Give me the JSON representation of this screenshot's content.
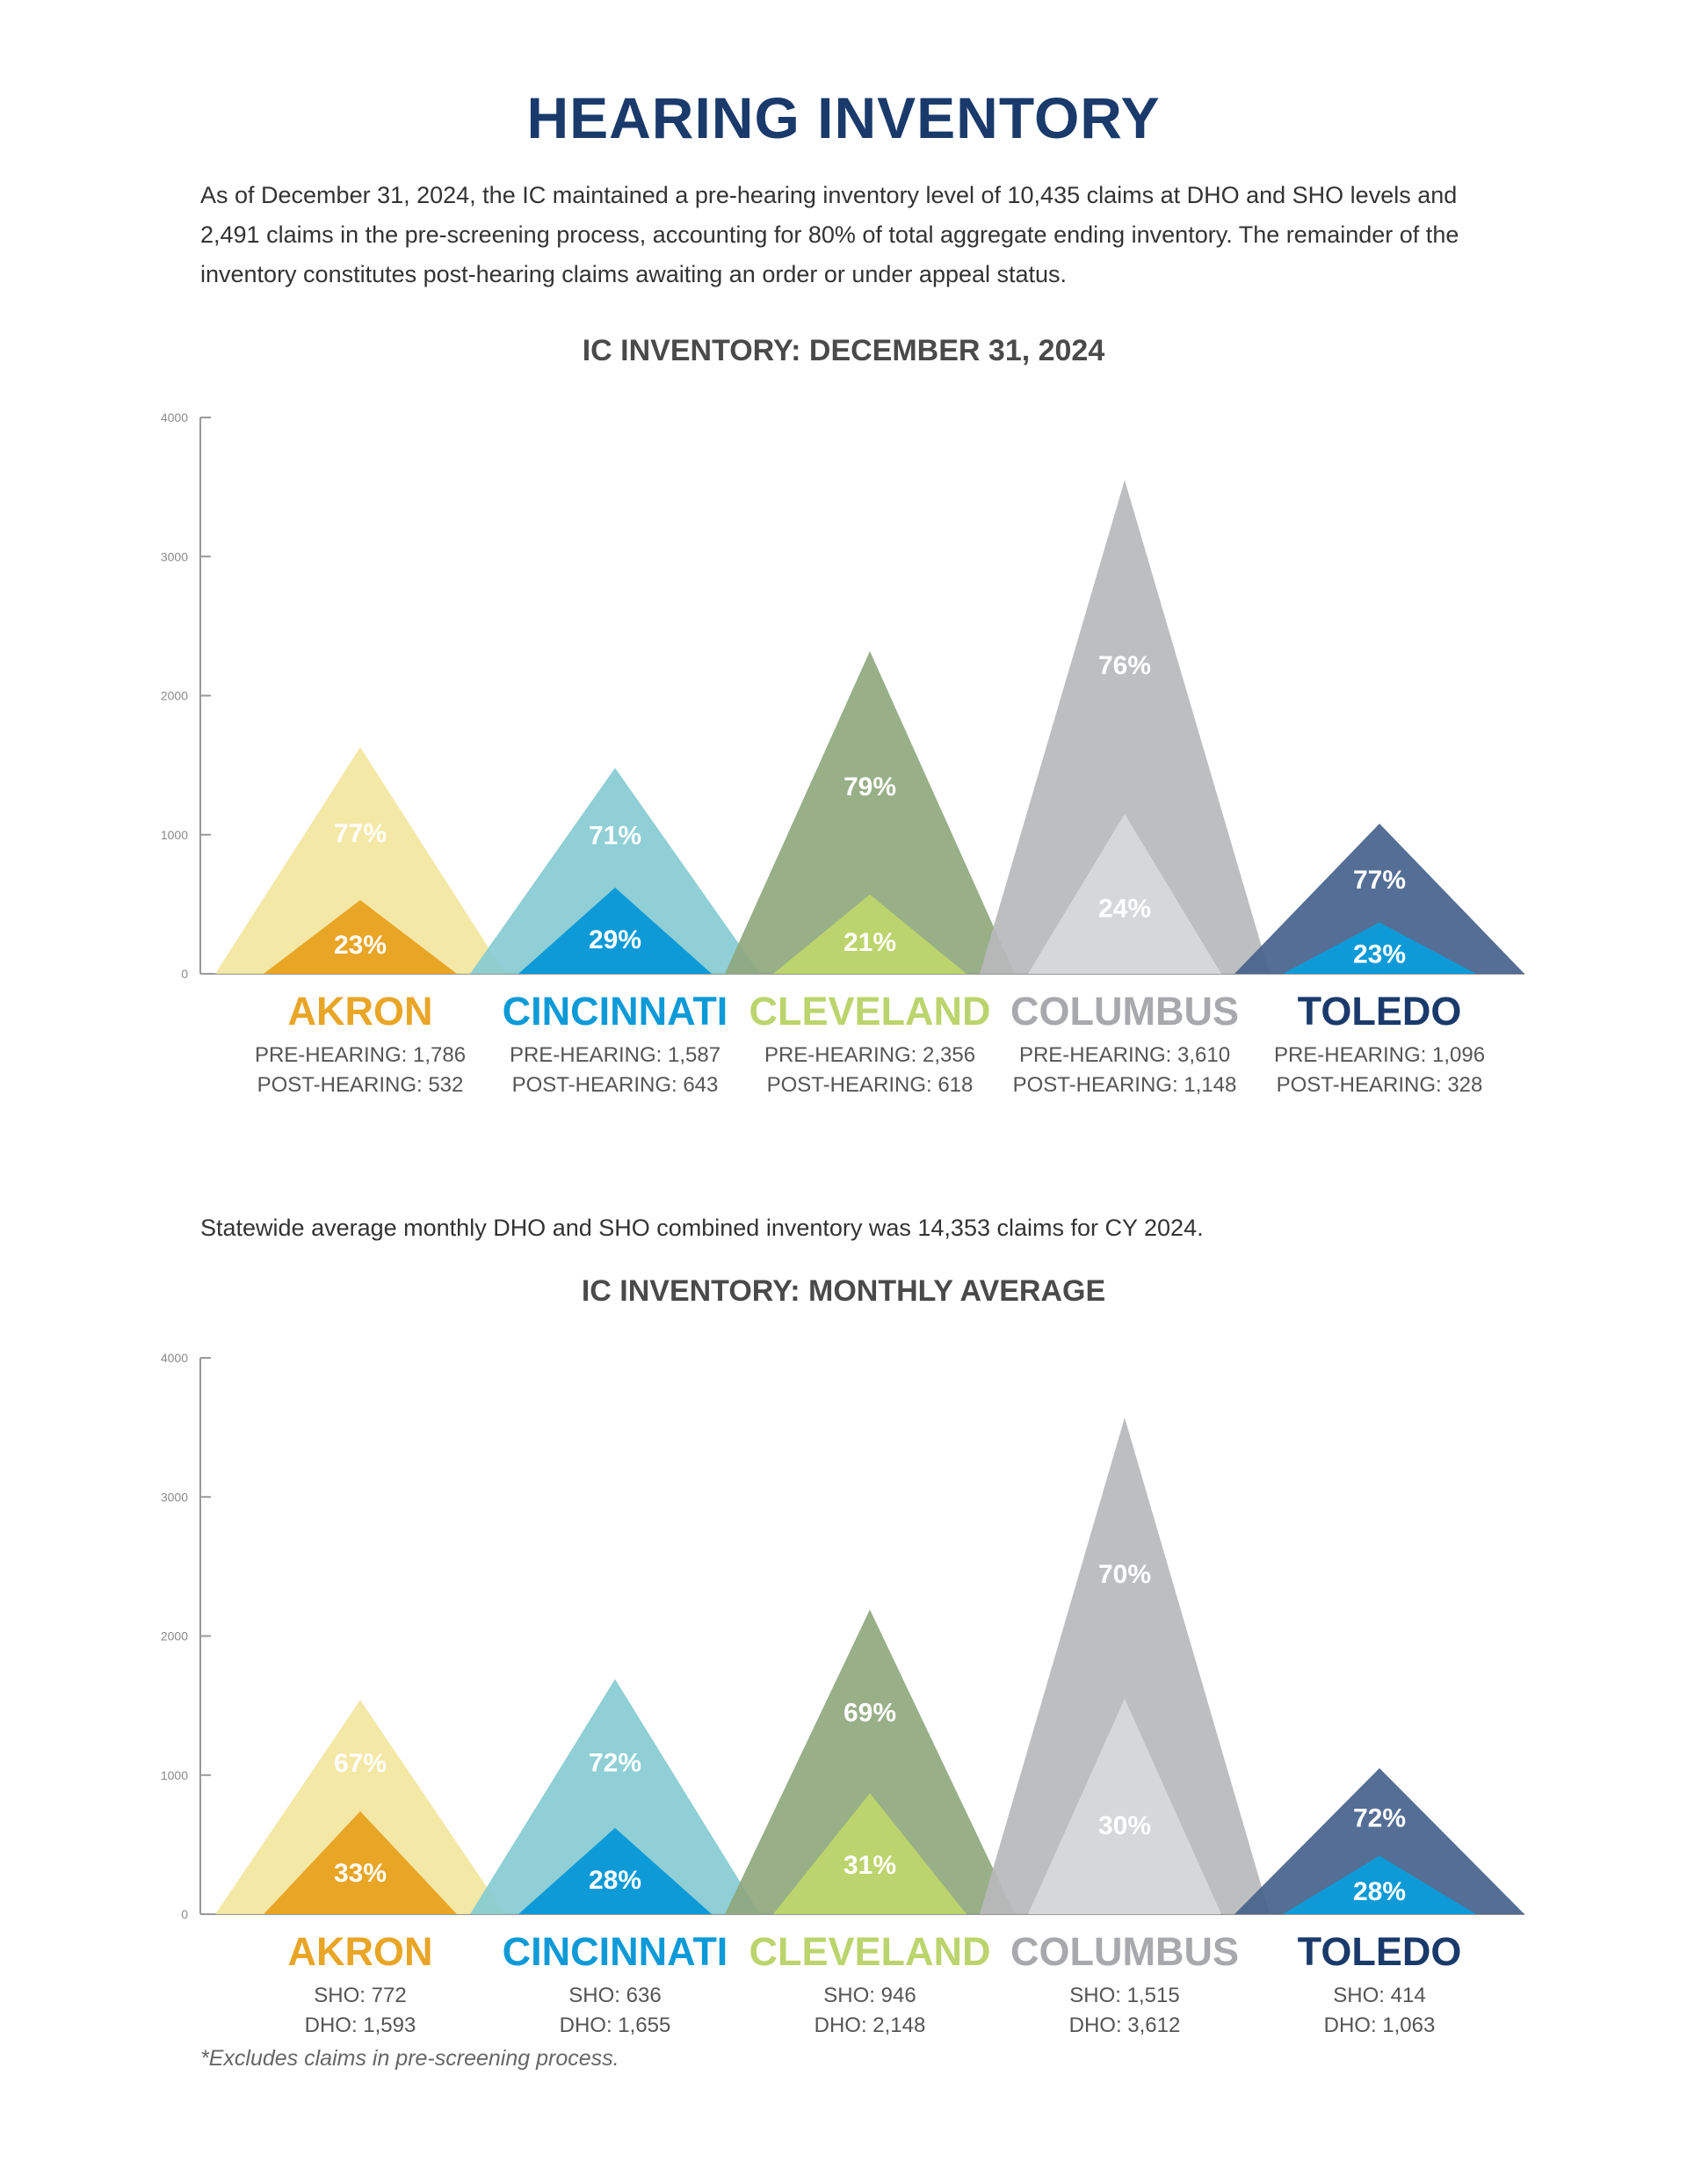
{
  "title": "HEARING INVENTORY",
  "intro": "As of December 31, 2024, the IC maintained a pre-hearing inventory level of 10,435 claims at DHO and SHO levels and 2,491 claims in the pre-screening process, accounting for 80% of total aggregate ending inventory. The remainder of the inventory constitutes post-hearing claims awaiting an order or under appeal status.",
  "statewide_text": "Statewide average monthly DHO and SHO combined inventory was 14,353 claims for CY 2024.",
  "footnote": "*Excludes claims in pre-screening process.",
  "colors": {
    "akron": {
      "outer": "#f3e6a0",
      "inner": "#e9a526",
      "label": "#e9a526"
    },
    "cincinnati": {
      "outer": "#86cbd1",
      "inner": "#0e9ad7",
      "label": "#0e9ad7"
    },
    "cleveland": {
      "outer": "#8fa87e",
      "inner": "#bcd46d",
      "label": "#bcd46d"
    },
    "columbus": {
      "outer": "#b7b8bb",
      "inner": "#d6d7d9",
      "label": "#a8a9ac"
    },
    "toledo": {
      "outer": "#47628c",
      "inner": "#0e9ad7",
      "label": "#1a3a6b"
    }
  },
  "chart_data": [
    {
      "type": "area",
      "title": "IC INVENTORY: DECEMBER 31, 2024",
      "ylim": [
        0,
        4000
      ],
      "yticks": [
        "0",
        "1000",
        "2000",
        "3000",
        "4000"
      ],
      "categories": [
        "AKRON",
        "CINCINNATI",
        "CLEVELAND",
        "COLUMBUS",
        "TOLEDO"
      ],
      "series": [
        {
          "values": [
            1630,
            1480,
            2320,
            3550,
            1080
          ],
          "pct_labels": [
            "77%",
            "71%",
            "79%",
            "76%",
            "77%"
          ]
        },
        {
          "values": [
            530,
            620,
            570,
            1150,
            370
          ],
          "pct_labels": [
            "23%",
            "29%",
            "21%",
            "24%",
            "23%"
          ]
        }
      ],
      "detail_line1": [
        "PRE-HEARING: 1,786",
        "PRE-HEARING: 1,587",
        "PRE-HEARING: 2,356",
        "PRE-HEARING: 3,610",
        "PRE-HEARING: 1,096"
      ],
      "detail_line2": [
        "POST-HEARING: 532",
        "POST-HEARING: 643",
        "POST-HEARING: 618",
        "POST-HEARING: 1,148",
        "POST-HEARING: 328"
      ]
    },
    {
      "type": "area",
      "title": "IC INVENTORY: MONTHLY AVERAGE",
      "ylim": [
        0,
        4000
      ],
      "yticks": [
        "0",
        "1000",
        "2000",
        "3000",
        "4000"
      ],
      "categories": [
        "AKRON",
        "CINCINNATI",
        "CLEVELAND",
        "COLUMBUS",
        "TOLEDO"
      ],
      "series": [
        {
          "values": [
            1540,
            1690,
            2190,
            3570,
            1050
          ],
          "pct_labels": [
            "67%",
            "72%",
            "69%",
            "70%",
            "72%"
          ]
        },
        {
          "values": [
            740,
            620,
            870,
            1550,
            420
          ],
          "pct_labels": [
            "33%",
            "28%",
            "31%",
            "30%",
            "28%"
          ]
        }
      ],
      "detail_line1": [
        "SHO: 772",
        "SHO: 636",
        "SHO: 946",
        "SHO: 1,515",
        "SHO: 414"
      ],
      "detail_line2": [
        "DHO: 1,593",
        "DHO: 1,655",
        "DHO: 2,148",
        "DHO: 3,612",
        "DHO: 1,063"
      ]
    }
  ]
}
